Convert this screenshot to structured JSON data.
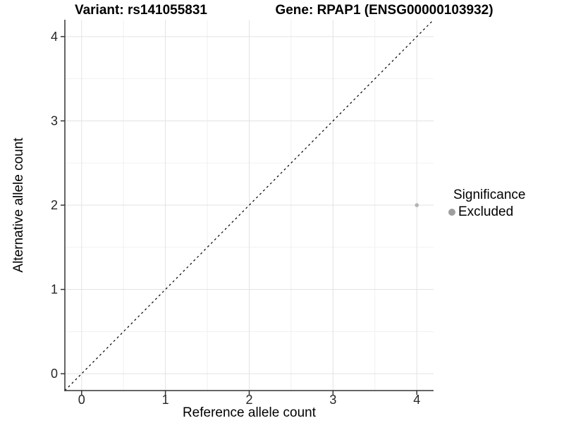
{
  "titles": {
    "variant": "Variant: rs141055831",
    "gene": "Gene: RPAP1 (ENSG00000103932)"
  },
  "chart_data": {
    "type": "scatter",
    "title": "Variant: rs141055831   Gene: RPAP1 (ENSG00000103932)",
    "xlabel": "Reference allele count",
    "ylabel": "Alternative allele count",
    "xlim": [
      -0.2,
      4.2
    ],
    "ylim": [
      -0.2,
      4.2
    ],
    "xticks": [
      0,
      1,
      2,
      3,
      4
    ],
    "yticks": [
      0,
      1,
      2,
      3,
      4
    ],
    "minor_xticks": [
      0.5,
      1.5,
      2.5,
      3.5
    ],
    "minor_yticks": [
      0.5,
      1.5,
      2.5,
      3.5
    ],
    "grid": true,
    "points": [
      {
        "x": 4,
        "y": 2,
        "series": "Excluded"
      }
    ],
    "reference_line": {
      "kind": "identity",
      "equation": "y = x",
      "style": "dashed"
    },
    "legend": {
      "title": "Significance",
      "position": "right",
      "items": [
        {
          "label": "Excluded",
          "color": "#9e9e9e"
        }
      ]
    }
  },
  "colors": {
    "background": "#ffffff",
    "axis_line": "#333333",
    "grid_major": "#e3e3e3",
    "grid_minor": "#f1f1f1",
    "tick_text": "#262626",
    "reference_line": "#000000",
    "point": "#b3b3b3"
  }
}
